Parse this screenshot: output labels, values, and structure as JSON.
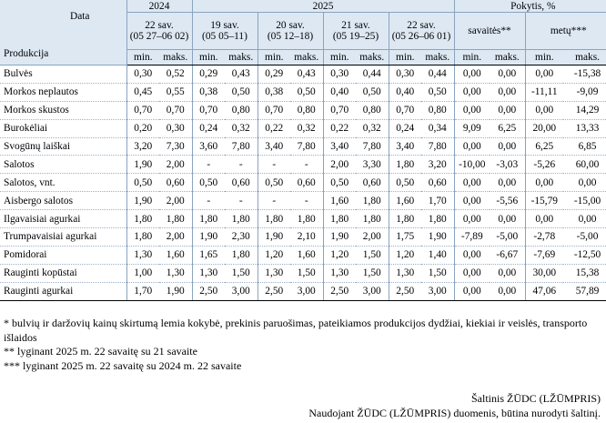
{
  "header": {
    "corner_top": "Data",
    "corner_bottom": "Produkcija",
    "year_2024": "2024",
    "year_2025": "2025",
    "change": "Pokytis, %",
    "weeks": [
      "22 sav.\n(05 27–06 02)",
      "19 sav.\n(05 05–11)",
      "20 sav.\n(05 12–18)",
      "21 sav.\n(05 19–25)",
      "22 sav.\n(05 26–06 01)"
    ],
    "change_weekly": "savaitės**",
    "change_yearly": "metų***",
    "min": "min.",
    "max": "maks."
  },
  "rows": [
    {
      "name": "Bulvės",
      "values": [
        "0,30",
        "0,52",
        "0,29",
        "0,43",
        "0,29",
        "0,43",
        "0,30",
        "0,44",
        "0,30",
        "0,44",
        "0,00",
        "0,00",
        "0,00",
        "-15,38"
      ]
    },
    {
      "name": "Morkos neplautos",
      "values": [
        "0,45",
        "0,55",
        "0,38",
        "0,50",
        "0,38",
        "0,50",
        "0,40",
        "0,50",
        "0,40",
        "0,50",
        "0,00",
        "0,00",
        "-11,11",
        "-9,09"
      ]
    },
    {
      "name": "Morkos skustos",
      "values": [
        "0,70",
        "0,70",
        "0,70",
        "0,80",
        "0,70",
        "0,80",
        "0,70",
        "0,80",
        "0,70",
        "0,80",
        "0,00",
        "0,00",
        "0,00",
        "14,29"
      ]
    },
    {
      "name": "Burokėliai",
      "values": [
        "0,20",
        "0,30",
        "0,24",
        "0,32",
        "0,22",
        "0,32",
        "0,22",
        "0,32",
        "0,24",
        "0,34",
        "9,09",
        "6,25",
        "20,00",
        "13,33"
      ]
    },
    {
      "name": "Svogūnų laiškai",
      "values": [
        "3,20",
        "7,30",
        "3,60",
        "7,80",
        "3,40",
        "7,80",
        "3,40",
        "7,80",
        "3,40",
        "7,80",
        "0,00",
        "0,00",
        "6,25",
        "6,85"
      ]
    },
    {
      "name": "Salotos",
      "values": [
        "1,90",
        "2,00",
        "-",
        "-",
        "-",
        "-",
        "2,00",
        "3,30",
        "1,80",
        "3,20",
        "-10,00",
        "-3,03",
        "-5,26",
        "60,00"
      ]
    },
    {
      "name": "Salotos, vnt.",
      "values": [
        "0,50",
        "0,60",
        "0,50",
        "0,60",
        "0,50",
        "0,60",
        "0,50",
        "0,60",
        "0,50",
        "0,60",
        "0,00",
        "0,00",
        "0,00",
        "0,00"
      ]
    },
    {
      "name": "Aisbergo salotos",
      "values": [
        "1,90",
        "2,00",
        "-",
        "-",
        "-",
        "-",
        "1,60",
        "1,80",
        "1,60",
        "1,70",
        "0,00",
        "-5,56",
        "-15,79",
        "-15,00"
      ]
    },
    {
      "name": "Ilgavaisiai agurkai",
      "values": [
        "1,80",
        "1,80",
        "1,80",
        "1,80",
        "1,80",
        "1,80",
        "1,80",
        "1,80",
        "1,80",
        "1,80",
        "0,00",
        "0,00",
        "0,00",
        "0,00"
      ]
    },
    {
      "name": "Trumpavaisiai agurkai",
      "values": [
        "1,80",
        "2,00",
        "1,90",
        "2,30",
        "1,90",
        "2,10",
        "1,90",
        "2,00",
        "1,75",
        "1,90",
        "-7,89",
        "-5,00",
        "-2,78",
        "-5,00"
      ]
    },
    {
      "name": "Pomidorai",
      "values": [
        "1,30",
        "1,60",
        "1,65",
        "1,80",
        "1,20",
        "1,60",
        "1,20",
        "1,50",
        "1,20",
        "1,40",
        "0,00",
        "-6,67",
        "-7,69",
        "-12,50"
      ]
    },
    {
      "name": "Rauginti kopūstai",
      "values": [
        "1,00",
        "1,30",
        "1,30",
        "1,50",
        "1,30",
        "1,50",
        "1,30",
        "1,50",
        "1,30",
        "1,50",
        "0,00",
        "0,00",
        "30,00",
        "15,38"
      ]
    },
    {
      "name": "Rauginti agurkai",
      "values": [
        "1,70",
        "1,90",
        "2,50",
        "3,00",
        "2,50",
        "3,00",
        "2,50",
        "3,00",
        "2,50",
        "3,00",
        "0,00",
        "0,00",
        "47,06",
        "57,89"
      ]
    }
  ],
  "notes": [
    "* bulvių ir daržovių kainų skirtumą lemia kokybė, prekinis paruošimas, pateikiamos produkcijos dydžiai, kiekiai ir veislės, transporto išlaidos",
    "** lyginant 2025 m. 22 savaitę su 21 savaite",
    "*** lyginant 2025 m. 22 savaitę su 2024 m. 22 savaite"
  ],
  "source": {
    "line1": "Šaltinis  ŽŪDC (LŽŪMPRIS)",
    "line2": "Naudojant ŽŪDC (LŽŪMPRIS) duomenis, būtina nurodyti šaltinį."
  }
}
